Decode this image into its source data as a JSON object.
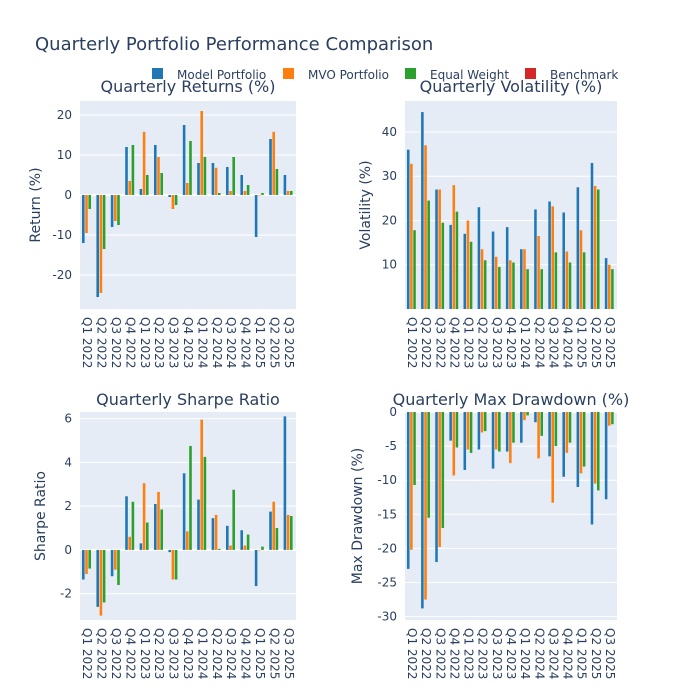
{
  "title": "Quarterly Portfolio Performance Comparison",
  "legend": [
    {
      "name": "Model Portfolio",
      "color": "#1f77b4"
    },
    {
      "name": "MVO Portfolio",
      "color": "#ff7f0e"
    },
    {
      "name": "Equal Weight",
      "color": "#2ca02c"
    },
    {
      "name": "Benchmark",
      "color": "#d62728"
    }
  ],
  "chart_data": [
    {
      "type": "bar",
      "title": "Quarterly Returns (%)",
      "xlabel": "",
      "ylabel": "Return (%)",
      "ylim": [
        -28.5,
        23.5
      ],
      "yticks": [
        -20,
        -10,
        0,
        10,
        20
      ],
      "categories": [
        "Q1 2022",
        "Q2 2022",
        "Q3 2022",
        "Q4 2022",
        "Q1 2023",
        "Q2 2023",
        "Q3 2023",
        "Q4 2023",
        "Q1 2024",
        "Q2 2024",
        "Q3 2024",
        "Q4 2024",
        "Q1 2025",
        "Q2 2025",
        "Q3 2025"
      ],
      "series": [
        {
          "name": "Model Portfolio",
          "values": [
            -12,
            -25.5,
            -8,
            12,
            1.5,
            12.5,
            -0.5,
            17.5,
            8,
            8,
            7,
            5,
            -10.5,
            14,
            5
          ]
        },
        {
          "name": "MVO Portfolio",
          "values": [
            -9.5,
            -24.5,
            -6.5,
            3.5,
            15.8,
            9.5,
            -3.5,
            3,
            21,
            6.8,
            1,
            1,
            0,
            15.8,
            1
          ]
        },
        {
          "name": "Equal Weight",
          "values": [
            -3.5,
            -13.5,
            -7.5,
            12.5,
            5,
            5.5,
            -2.5,
            13.5,
            9.5,
            0.5,
            9.5,
            2.5,
            0.5,
            6.5,
            1
          ]
        }
      ]
    },
    {
      "type": "bar",
      "title": "Quarterly Volatility (%)",
      "xlabel": "",
      "ylabel": "Volatility (%)",
      "ylim": [
        0,
        47
      ],
      "yticks": [
        10,
        20,
        30,
        40
      ],
      "categories": [
        "Q1 2022",
        "Q2 2022",
        "Q3 2022",
        "Q4 2022",
        "Q1 2023",
        "Q2 2023",
        "Q3 2023",
        "Q4 2023",
        "Q1 2024",
        "Q2 2024",
        "Q3 2024",
        "Q4 2024",
        "Q1 2025",
        "Q2 2025",
        "Q3 2025"
      ],
      "series": [
        {
          "name": "Model Portfolio",
          "values": [
            36,
            44.5,
            27,
            19,
            17,
            23,
            17.5,
            18.5,
            13.5,
            22.5,
            24.3,
            21.8,
            27.5,
            33,
            11.5
          ]
        },
        {
          "name": "MVO Portfolio",
          "values": [
            32.8,
            37,
            27,
            28,
            20,
            13.5,
            11.8,
            11,
            13.5,
            16.5,
            23.2,
            13,
            17.8,
            27.8,
            10
          ]
        },
        {
          "name": "Equal Weight",
          "values": [
            17.8,
            24.5,
            19.5,
            22,
            15.2,
            11,
            9.5,
            10.5,
            9,
            9,
            12.8,
            10.5,
            12.8,
            27,
            9
          ]
        }
      ]
    },
    {
      "type": "bar",
      "title": "Quarterly Sharpe Ratio",
      "xlabel": "",
      "ylabel": "Sharpe Ratio",
      "ylim": [
        -3.2,
        6.3
      ],
      "yticks": [
        -2,
        0,
        2,
        4,
        6
      ],
      "categories": [
        "Q1 2022",
        "Q2 2022",
        "Q3 2022",
        "Q4 2022",
        "Q1 2023",
        "Q2 2023",
        "Q3 2023",
        "Q4 2023",
        "Q1 2024",
        "Q2 2024",
        "Q3 2024",
        "Q4 2024",
        "Q1 2025",
        "Q2 2025",
        "Q3 2025"
      ],
      "series": [
        {
          "name": "Model Portfolio",
          "values": [
            -1.35,
            -2.6,
            -1.2,
            2.45,
            0.3,
            2.1,
            -0.1,
            3.5,
            2.3,
            1.45,
            1.1,
            0.9,
            -1.65,
            1.75,
            6.1
          ]
        },
        {
          "name": "MVO Portfolio",
          "values": [
            -1.1,
            -3.0,
            -0.9,
            0.6,
            3.05,
            2.65,
            -1.35,
            0.85,
            5.95,
            1.6,
            0.2,
            0.2,
            0.0,
            2.2,
            1.6
          ]
        },
        {
          "name": "Equal Weight",
          "values": [
            -0.85,
            -2.4,
            -1.6,
            2.2,
            1.25,
            1.85,
            -1.35,
            4.75,
            4.25,
            0.05,
            2.75,
            0.7,
            0.15,
            1.0,
            1.55
          ]
        }
      ]
    },
    {
      "type": "bar",
      "title": "Quarterly Max Drawdown (%)",
      "xlabel": "",
      "ylabel": "Max Drawdown (%)",
      "ylim": [
        -30.5,
        0
      ],
      "yticks": [
        -30,
        -25,
        -20,
        -15,
        -10,
        -5,
        0
      ],
      "categories": [
        "Q1 2022",
        "Q2 2022",
        "Q3 2022",
        "Q4 2022",
        "Q1 2023",
        "Q2 2023",
        "Q3 2023",
        "Q4 2023",
        "Q1 2024",
        "Q2 2024",
        "Q3 2024",
        "Q4 2024",
        "Q1 2025",
        "Q2 2025",
        "Q3 2025"
      ],
      "series": [
        {
          "name": "Model Portfolio",
          "values": [
            -23,
            -28.8,
            -22,
            -4.2,
            -8.5,
            -5.5,
            -8.3,
            -5.8,
            -4.5,
            -1.5,
            -6.5,
            -9.5,
            -11,
            -16.5,
            -12.8
          ]
        },
        {
          "name": "MVO Portfolio",
          "values": [
            -20.2,
            -27.5,
            -19.8,
            -9.3,
            -5.5,
            -3,
            -5.5,
            -7.5,
            -1.2,
            -6.8,
            -13.3,
            -6,
            -9,
            -10.5,
            -2
          ]
        },
        {
          "name": "Equal Weight",
          "values": [
            -10.7,
            -15.5,
            -17,
            -5.2,
            -6,
            -2.8,
            -5.8,
            -4.5,
            -0.5,
            -3.5,
            -5,
            -4.5,
            -8,
            -11.5,
            -1.8
          ]
        }
      ]
    }
  ]
}
